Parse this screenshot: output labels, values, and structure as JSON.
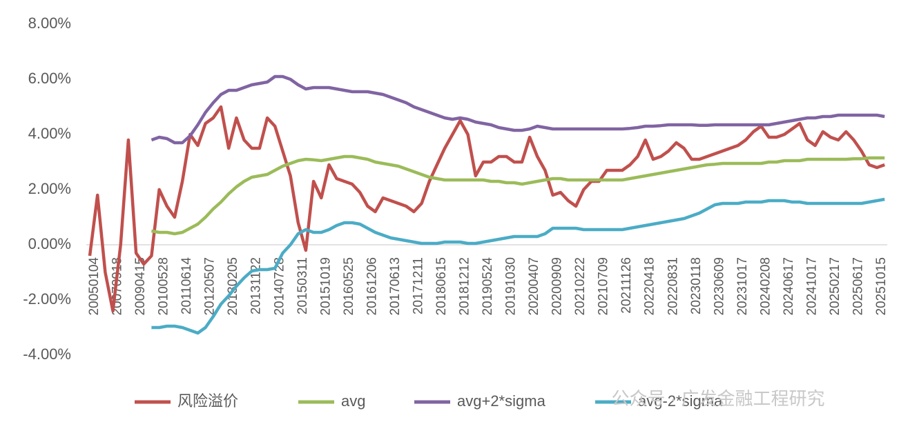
{
  "chart_data": {
    "type": "line",
    "categories": [
      "20050104",
      null,
      null,
      "20070918",
      null,
      null,
      "20090415",
      null,
      null,
      "20100528",
      null,
      null,
      "20110614",
      null,
      null,
      "20120507",
      null,
      null,
      "20130205",
      null,
      null,
      "20131122",
      null,
      null,
      "20140728",
      null,
      null,
      "20150311",
      null,
      null,
      "20151019",
      null,
      null,
      "20160525",
      null,
      null,
      "20161206",
      null,
      null,
      "20170613",
      null,
      null,
      "20171211",
      null,
      null,
      "20180615",
      null,
      null,
      "20181212",
      null,
      null,
      "20190524",
      null,
      null,
      "20191030",
      null,
      null,
      "20200407",
      null,
      null,
      "20200909",
      null,
      null,
      "20210222",
      null,
      null,
      "20210709",
      null,
      null,
      "20211126",
      null,
      null,
      "20220418",
      null,
      null,
      "20220831",
      null,
      null,
      "20230118",
      null,
      null,
      "20230609",
      null,
      null,
      "20231017",
      null,
      null,
      "20240208",
      null,
      null,
      "20240617",
      null,
      null,
      "20241017",
      null,
      null,
      "20250217",
      null,
      null,
      "20250617",
      null,
      null,
      "20251015",
      null
    ],
    "series": [
      {
        "name": "风险溢价",
        "color": "#c0504d",
        "values": [
          -0.4,
          1.8,
          -1.0,
          -2.4,
          0.0,
          3.8,
          -0.3,
          -0.7,
          -0.4,
          2.0,
          1.4,
          1.0,
          2.3,
          4.0,
          3.6,
          4.4,
          4.6,
          5.0,
          3.5,
          4.6,
          3.8,
          3.5,
          3.5,
          4.6,
          4.3,
          3.4,
          2.5,
          0.8,
          -0.2,
          2.3,
          1.7,
          2.9,
          2.4,
          2.3,
          2.2,
          1.9,
          1.4,
          1.2,
          1.7,
          1.6,
          1.5,
          1.4,
          1.2,
          1.5,
          2.3,
          2.9,
          3.5,
          4.0,
          4.5,
          4.0,
          2.5,
          3.0,
          3.0,
          3.2,
          3.2,
          3.0,
          3.0,
          3.9,
          3.2,
          2.7,
          1.8,
          1.9,
          1.6,
          1.4,
          2.0,
          2.3,
          2.3,
          2.7,
          2.7,
          2.7,
          2.9,
          3.2,
          3.8,
          3.1,
          3.2,
          3.4,
          3.7,
          3.5,
          3.1,
          3.1,
          3.2,
          3.3,
          3.4,
          3.5,
          3.6,
          3.8,
          4.1,
          4.3,
          3.9,
          3.9,
          4.0,
          4.2,
          4.4,
          3.8,
          3.6,
          4.1,
          3.9,
          3.8,
          4.1,
          3.8,
          3.4,
          2.9,
          2.8,
          2.9
        ]
      },
      {
        "name": "avg",
        "color": "#9bbb59",
        "values": [
          null,
          null,
          null,
          null,
          null,
          null,
          null,
          null,
          0.5,
          0.45,
          0.45,
          0.4,
          0.45,
          0.6,
          0.75,
          1.0,
          1.3,
          1.55,
          1.85,
          2.1,
          2.3,
          2.45,
          2.5,
          2.55,
          2.7,
          2.85,
          2.95,
          3.05,
          3.1,
          3.08,
          3.05,
          3.1,
          3.15,
          3.2,
          3.2,
          3.15,
          3.1,
          3.0,
          2.95,
          2.9,
          2.85,
          2.75,
          2.65,
          2.55,
          2.45,
          2.4,
          2.35,
          2.35,
          2.35,
          2.35,
          2.35,
          2.35,
          2.3,
          2.3,
          2.25,
          2.25,
          2.2,
          2.25,
          2.3,
          2.35,
          2.4,
          2.4,
          2.35,
          2.35,
          2.35,
          2.35,
          2.35,
          2.35,
          2.35,
          2.35,
          2.4,
          2.45,
          2.5,
          2.55,
          2.6,
          2.65,
          2.7,
          2.75,
          2.8,
          2.85,
          2.9,
          2.92,
          2.95,
          2.95,
          2.95,
          2.95,
          2.95,
          2.95,
          3.0,
          3.0,
          3.05,
          3.05,
          3.05,
          3.1,
          3.1,
          3.1,
          3.1,
          3.1,
          3.1,
          3.12,
          3.12,
          3.15,
          3.15,
          3.15
        ]
      },
      {
        "name": "avg+2*sigma",
        "color": "#8064a2",
        "values": [
          null,
          null,
          null,
          null,
          null,
          null,
          null,
          null,
          3.8,
          3.9,
          3.85,
          3.7,
          3.7,
          3.95,
          4.35,
          4.8,
          5.15,
          5.45,
          5.6,
          5.6,
          5.7,
          5.8,
          5.85,
          5.9,
          6.1,
          6.1,
          6.0,
          5.8,
          5.65,
          5.7,
          5.7,
          5.7,
          5.65,
          5.6,
          5.55,
          5.55,
          5.55,
          5.5,
          5.45,
          5.35,
          5.25,
          5.15,
          5.0,
          4.9,
          4.8,
          4.7,
          4.6,
          4.55,
          4.6,
          4.55,
          4.45,
          4.4,
          4.35,
          4.25,
          4.2,
          4.15,
          4.15,
          4.2,
          4.3,
          4.25,
          4.2,
          4.2,
          4.2,
          4.2,
          4.2,
          4.2,
          4.2,
          4.2,
          4.2,
          4.2,
          4.22,
          4.25,
          4.3,
          4.3,
          4.32,
          4.35,
          4.35,
          4.35,
          4.35,
          4.33,
          4.33,
          4.35,
          4.35,
          4.35,
          4.35,
          4.35,
          4.35,
          4.35,
          4.35,
          4.4,
          4.45,
          4.5,
          4.55,
          4.6,
          4.6,
          4.65,
          4.65,
          4.7,
          4.7,
          4.7,
          4.7,
          4.7,
          4.7,
          4.65
        ]
      },
      {
        "name": "avg-2*sigma",
        "color": "#4bacc6",
        "values": [
          null,
          null,
          null,
          null,
          null,
          null,
          null,
          null,
          -3.0,
          -3.0,
          -2.95,
          -2.95,
          -3.0,
          -3.1,
          -3.2,
          -3.0,
          -2.6,
          -2.15,
          -1.85,
          -1.5,
          -1.2,
          -0.95,
          -0.9,
          -0.9,
          -0.85,
          -0.3,
          0.0,
          0.4,
          0.55,
          0.45,
          0.45,
          0.55,
          0.7,
          0.8,
          0.8,
          0.75,
          0.6,
          0.45,
          0.35,
          0.25,
          0.2,
          0.15,
          0.1,
          0.05,
          0.05,
          0.05,
          0.1,
          0.1,
          0.1,
          0.05,
          0.05,
          0.1,
          0.15,
          0.2,
          0.25,
          0.3,
          0.3,
          0.3,
          0.3,
          0.4,
          0.6,
          0.6,
          0.6,
          0.6,
          0.55,
          0.55,
          0.55,
          0.55,
          0.55,
          0.55,
          0.6,
          0.65,
          0.7,
          0.75,
          0.8,
          0.85,
          0.9,
          0.95,
          1.05,
          1.15,
          1.3,
          1.45,
          1.5,
          1.5,
          1.5,
          1.55,
          1.55,
          1.55,
          1.6,
          1.6,
          1.6,
          1.55,
          1.55,
          1.5,
          1.5,
          1.5,
          1.5,
          1.5,
          1.5,
          1.5,
          1.5,
          1.55,
          1.6,
          1.65
        ]
      }
    ],
    "ylim": [
      -4,
      8
    ],
    "yticks": [
      {
        "value": -4,
        "label": "-4.00%"
      },
      {
        "value": -2,
        "label": "-2.00%"
      },
      {
        "value": 0,
        "label": "0.00%"
      },
      {
        "value": 2,
        "label": "2.00%"
      },
      {
        "value": 4,
        "label": "4.00%"
      },
      {
        "value": 6,
        "label": "6.00%"
      },
      {
        "value": 8,
        "label": "8.00%"
      }
    ],
    "grid": false,
    "legend": "bottom",
    "watermark": "公众号 · 广发金融工程研究"
  }
}
